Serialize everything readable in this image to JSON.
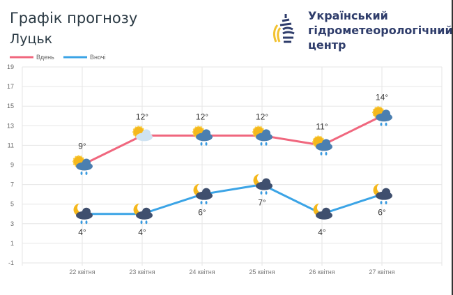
{
  "header": {
    "title": "Графік прогнозу",
    "city": "Луцьк"
  },
  "logo": {
    "org_lines": [
      "Український",
      "гідрометеорологічний",
      "центр"
    ],
    "colors": {
      "dark": "#2f3d6b",
      "yellow": "#f2c230"
    }
  },
  "chart_data": {
    "type": "line",
    "categories": [
      "22 квітня",
      "23 квітня",
      "24 квітня",
      "25 квітня",
      "26 квітня",
      "27 квітня"
    ],
    "series": [
      {
        "name": "Вдень",
        "color": "#f0677e",
        "values": [
          9,
          12,
          12,
          12,
          11,
          14
        ],
        "labels": [
          "9°",
          "12°",
          "12°",
          "12°",
          "11°",
          "14°"
        ],
        "icons": [
          "sun-cloud-rain",
          "sun-cloud",
          "sun-cloud-rain",
          "sun-cloud-rain",
          "sun-cloud-rain",
          "sun-cloud-rain"
        ]
      },
      {
        "name": "Вночі",
        "color": "#3ba4e6",
        "values": [
          4,
          4,
          6,
          7,
          4,
          6
        ],
        "labels": [
          "4°",
          "4°",
          "6°",
          "7°",
          "4°",
          "6°"
        ],
        "icons": [
          "moon-cloud-rain",
          "moon-cloud-rain",
          "moon-cloud-rain",
          "moon-cloud-rain",
          "moon-cloud",
          "moon-cloud-rain"
        ]
      }
    ],
    "yticks": [
      "19",
      "17",
      "15",
      "13",
      "11",
      "9",
      "7",
      "5",
      "3",
      "1",
      "-1"
    ],
    "ylim": [
      -1,
      19
    ],
    "grid": true,
    "legend": "top-left"
  }
}
